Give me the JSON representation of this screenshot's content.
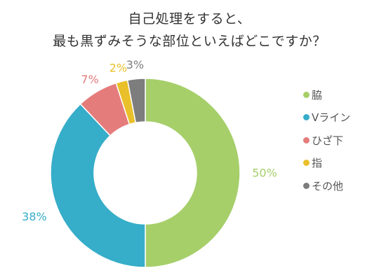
{
  "title_lines": [
    "自己処理をすると、",
    "最も黒ずみそうな部位といえばどこですか？"
  ],
  "chart_data": {
    "type": "pie",
    "donut": true,
    "title": "自己処理をすると、最も黒ずみそうな部位といえばどこですか？",
    "legend_position": "right",
    "categories": [
      "脇",
      "Vライン",
      "ひざ下",
      "指",
      "その他"
    ],
    "values": [
      50,
      38,
      7,
      2,
      3
    ],
    "labels": [
      "50%",
      "38%",
      "7%",
      "2%",
      "3%"
    ],
    "unit": "%",
    "colors": [
      "#a6cf6a",
      "#36adc9",
      "#e57c7c",
      "#e9c02a",
      "#7d7d7d"
    ]
  }
}
